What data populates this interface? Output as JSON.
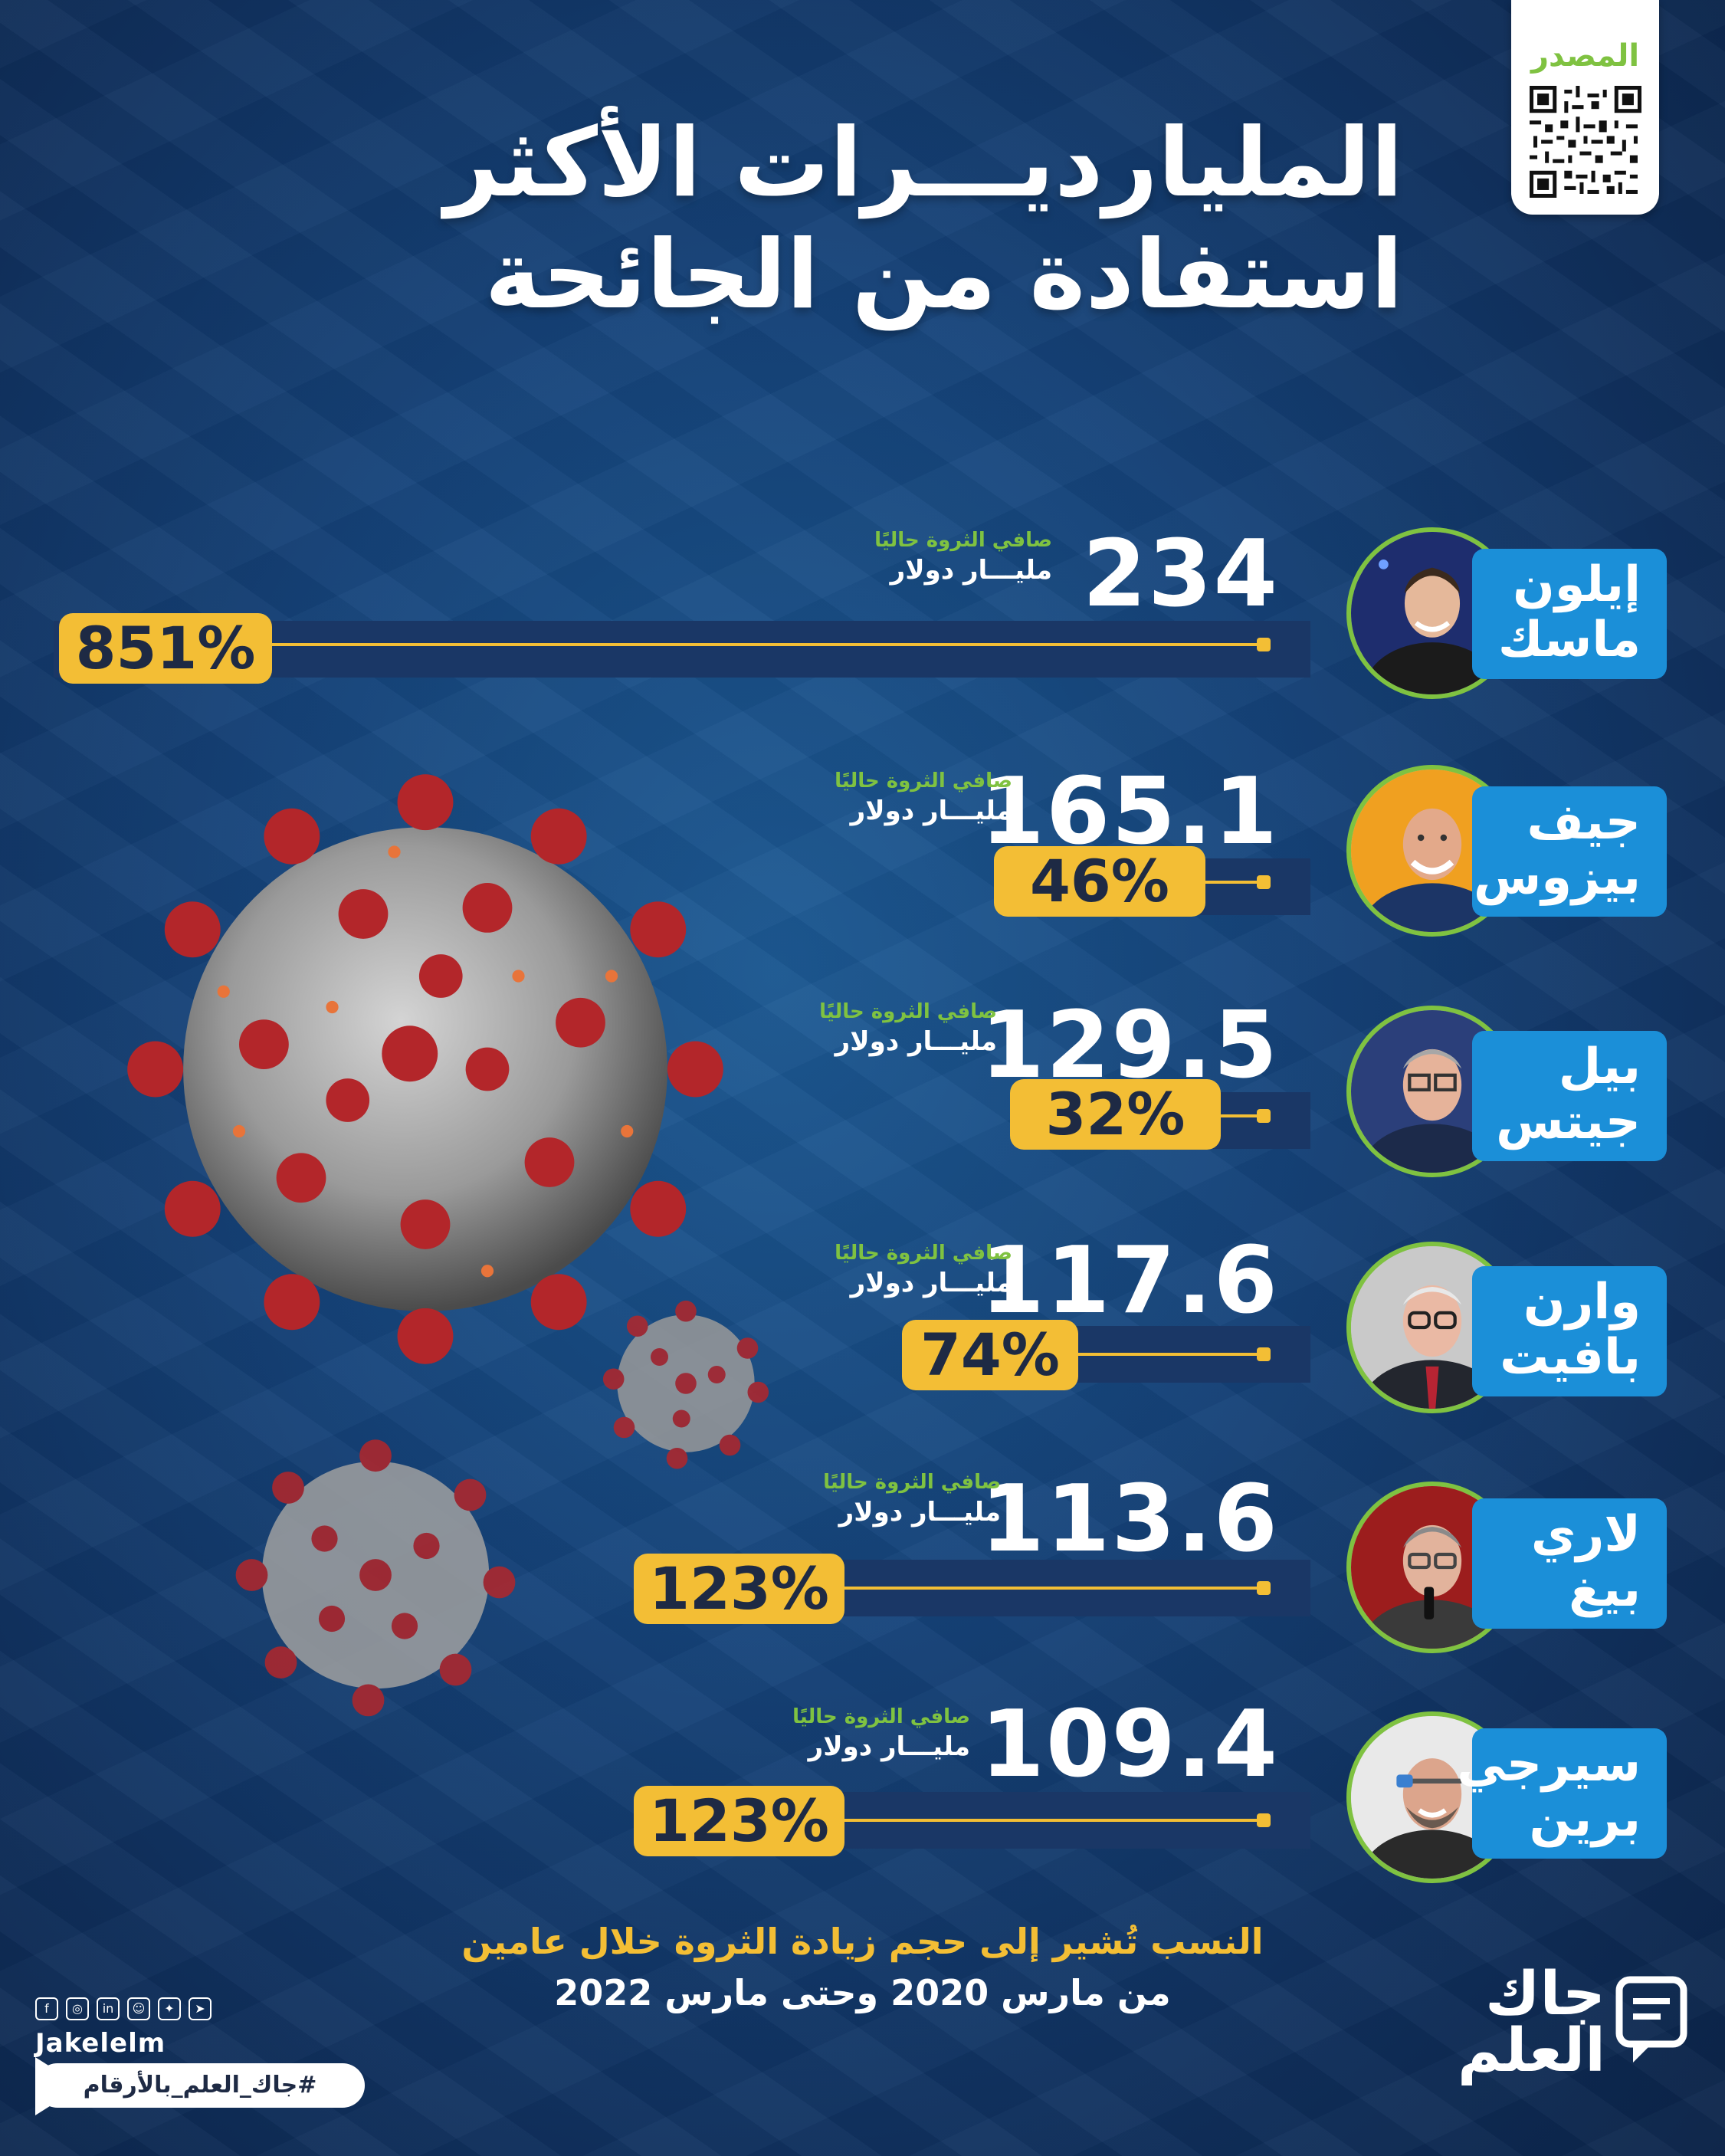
{
  "title": {
    "line1": "المليارديـــرات الأكثر",
    "line2": "استفادة من الجائحة"
  },
  "source": {
    "label": "المصدر"
  },
  "caption": {
    "worth_label": "صافي الثروة حاليًا",
    "unit": "مليـــار دولار"
  },
  "billionaires": [
    {
      "name_line1": "إيلون",
      "name_line2": "ماسك",
      "net_worth": "234",
      "increase": "851%",
      "increase_value": 851
    },
    {
      "name_line1": "جيف",
      "name_line2": "بيزوس",
      "net_worth": "165.1",
      "increase": "46%",
      "increase_value": 46
    },
    {
      "name_line1": "بيل",
      "name_line2": "جيتس",
      "net_worth": "129.5",
      "increase": "32%",
      "increase_value": 32
    },
    {
      "name_line1": "وارن",
      "name_line2": "بافيت",
      "net_worth": "117.6",
      "increase": "74%",
      "increase_value": 74
    },
    {
      "name_line1": "لاري",
      "name_line2": "بيغ",
      "net_worth": "113.6",
      "increase": "123%",
      "increase_value": 123
    },
    {
      "name_line1": "سيرجي",
      "name_line2": "برين",
      "net_worth": "109.4",
      "increase": "123%",
      "increase_value": 123
    }
  ],
  "footnote": {
    "line1": "النسب تُشير إلى حجم زيادة الثروة خلال عامين",
    "line2": "من مارس 2020 وحتى مارس 2022"
  },
  "brand": {
    "handle": "Jakelelm",
    "hashtag": "#جاك_العلم_بالأرقام",
    "logo_line1": "جاك",
    "logo_line2": "العلم"
  },
  "colors": {
    "accent_yellow": "#f3be35",
    "accent_green": "#7fc241",
    "name_blue": "#1b8fd8",
    "background": "#15437a"
  }
}
